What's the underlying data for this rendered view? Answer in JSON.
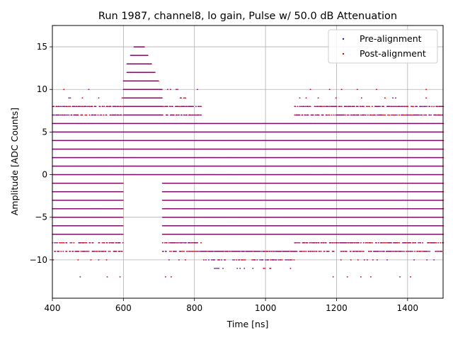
{
  "chart_data": {
    "type": "scatter",
    "title": "Run 1987, channel8, lo gain, Pulse w/ 50.0 dB Attenuation",
    "xlabel": "Time [ns]",
    "ylabel": "Amplitude [ADC Counts]",
    "xlim": [
      400,
      1500
    ],
    "ylim": [
      -14.5,
      17.5
    ],
    "xticks": [
      400,
      600,
      800,
      1000,
      1200,
      1400
    ],
    "yticks": [
      -10,
      -5,
      0,
      5,
      10,
      15
    ],
    "xtick_labels": [
      "400",
      "600",
      "800",
      "1000",
      "1200",
      "1400"
    ],
    "ytick_labels": [
      "−10",
      "−5",
      "0",
      "5",
      "10",
      "15"
    ],
    "grid": true,
    "legend_position": "upper right",
    "series": [
      {
        "name": "Pre-alignment",
        "color": "#1f1fcc",
        "marker": "dot"
      },
      {
        "name": "Post-alignment",
        "color": "#dd0000",
        "marker": "dot"
      }
    ],
    "baseline_band": {
      "dense_levels": [
        -7,
        -6,
        -5,
        -4,
        -3,
        -2,
        -1,
        0,
        1,
        2,
        3,
        4,
        5,
        6
      ],
      "sparse_levels": [
        7,
        8,
        -8,
        -9
      ],
      "rare_levels": [
        9,
        10,
        -10,
        -12
      ]
    },
    "pulse_peak": {
      "x": [
        600,
        610,
        620,
        630,
        640,
        650,
        660,
        670,
        680,
        690,
        700,
        710
      ],
      "y_max": [
        11,
        13,
        14,
        15,
        15,
        15,
        14,
        13,
        12,
        11,
        10,
        9
      ]
    },
    "pulse_undershoot": {
      "x_range": [
        820,
        1080
      ],
      "y_max": 6,
      "y_min": -11
    }
  }
}
